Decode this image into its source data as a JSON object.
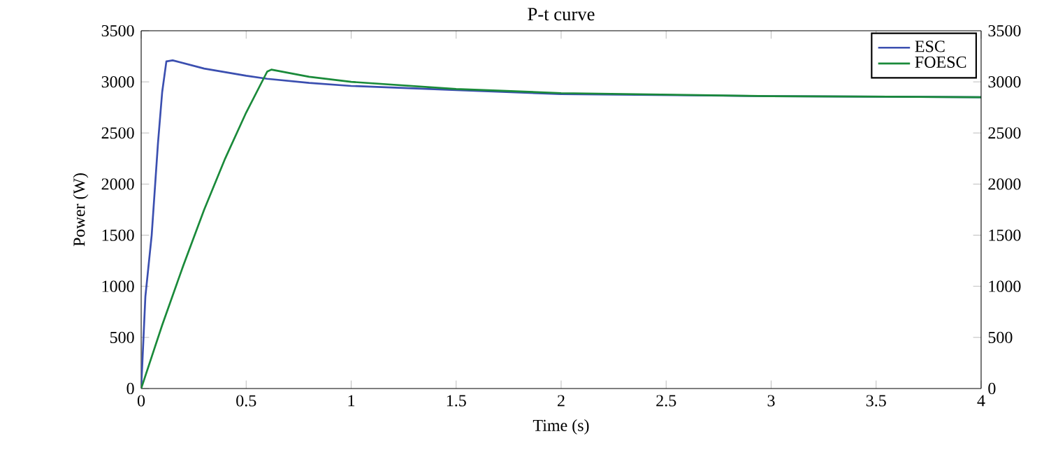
{
  "chart_data": {
    "type": "line",
    "title": "P-t curve",
    "xlabel": "Time (s)",
    "ylabel": "Power (W)",
    "xlim": [
      0,
      4
    ],
    "xticks": [
      0,
      0.5,
      1,
      1.5,
      2,
      2.5,
      3,
      3.5,
      4
    ],
    "ylim": [
      0,
      3500
    ],
    "yticks": [
      0,
      500,
      1000,
      1500,
      2000,
      2500,
      3000,
      3500
    ],
    "y2lim": [
      0,
      3500
    ],
    "y2ticks": [
      0,
      500,
      1000,
      1500,
      2000,
      2500,
      3000,
      3500
    ],
    "legend": "top right",
    "grid": false,
    "series": [
      {
        "name": "ESC",
        "color": "#3b4fb0",
        "x": [
          0,
          0.02,
          0.05,
          0.08,
          0.1,
          0.12,
          0.15,
          0.3,
          0.5,
          0.6,
          0.8,
          1,
          1.5,
          2,
          3,
          4
        ],
        "values": [
          0,
          900,
          1500,
          2400,
          2900,
          3200,
          3210,
          3130,
          3060,
          3030,
          2990,
          2960,
          2920,
          2880,
          2860,
          2850
        ]
      },
      {
        "name": "FOESC",
        "color": "#1a8a3a",
        "x": [
          0,
          0.1,
          0.2,
          0.3,
          0.4,
          0.5,
          0.6,
          0.62,
          0.8,
          1,
          1.5,
          2,
          3,
          4
        ],
        "values": [
          0,
          620,
          1200,
          1750,
          2250,
          2700,
          3100,
          3120,
          3050,
          3000,
          2930,
          2890,
          2860,
          2850
        ]
      }
    ]
  }
}
